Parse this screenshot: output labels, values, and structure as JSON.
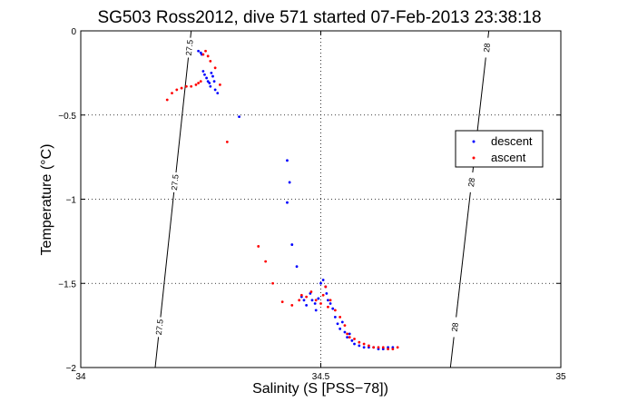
{
  "chart_data": {
    "type": "scatter",
    "title": "SG503 Ross2012, dive 571 started 07-Feb-2013 23:38:18",
    "xlabel": "Salinity (S [PSS−78])",
    "ylabel": "Temperature (°C)",
    "xlim": [
      34,
      35
    ],
    "ylim": [
      -2,
      0
    ],
    "x_ticks": [
      "34",
      "34.5",
      "35"
    ],
    "y_ticks": [
      "0",
      "−0.5",
      "−1",
      "−1.5",
      "−2"
    ],
    "grid": true,
    "legend_position": "right",
    "series": [
      {
        "name": "descent",
        "color": "#0000ff",
        "x": [
          34.245,
          34.25,
          34.252,
          34.255,
          34.258,
          34.262,
          34.265,
          34.268,
          34.27,
          34.272,
          34.275,
          34.278,
          34.28,
          34.285,
          34.33,
          34.43,
          34.435,
          34.43,
          34.44,
          34.45,
          34.46,
          34.465,
          34.47,
          34.478,
          34.482,
          34.488,
          34.49,
          34.495,
          34.5,
          34.505,
          34.51,
          34.512,
          34.515,
          34.52,
          34.525,
          34.53,
          34.535,
          34.54,
          34.545,
          34.55,
          34.555,
          34.56,
          34.565,
          34.57,
          34.58,
          34.59,
          34.6,
          34.61,
          34.62,
          34.63,
          34.64,
          34.65
        ],
        "y": [
          -0.12,
          -0.13,
          -0.14,
          -0.24,
          -0.26,
          -0.28,
          -0.3,
          -0.31,
          -0.33,
          -0.25,
          -0.27,
          -0.3,
          -0.35,
          -0.37,
          -0.51,
          -0.77,
          -0.9,
          -1.02,
          -1.27,
          -1.4,
          -1.58,
          -1.6,
          -1.63,
          -1.56,
          -1.6,
          -1.62,
          -1.66,
          -1.59,
          -1.5,
          -1.48,
          -1.52,
          -1.56,
          -1.6,
          -1.62,
          -1.65,
          -1.7,
          -1.74,
          -1.77,
          -1.73,
          -1.79,
          -1.82,
          -1.8,
          -1.84,
          -1.86,
          -1.87,
          -1.88,
          -1.88,
          -1.88,
          -1.89,
          -1.89,
          -1.88,
          -1.88
        ]
      },
      {
        "name": "ascent",
        "color": "#ff0000",
        "x": [
          34.18,
          34.19,
          34.2,
          34.21,
          34.22,
          34.23,
          34.24,
          34.245,
          34.25,
          34.255,
          34.26,
          34.265,
          34.27,
          34.28,
          34.29,
          34.305,
          34.37,
          34.385,
          34.4,
          34.42,
          34.44,
          34.455,
          34.46,
          34.47,
          34.48,
          34.49,
          34.5,
          34.505,
          34.51,
          34.515,
          34.52,
          34.53,
          34.54,
          34.55,
          34.555,
          34.56,
          34.57,
          34.58,
          34.59,
          34.6,
          34.61,
          34.62,
          34.63,
          34.64,
          34.65,
          34.66
        ],
        "y": [
          -0.41,
          -0.37,
          -0.35,
          -0.34,
          -0.33,
          -0.33,
          -0.32,
          -0.31,
          -0.3,
          -0.14,
          -0.12,
          -0.15,
          -0.18,
          -0.22,
          -0.32,
          -0.66,
          -1.28,
          -1.37,
          -1.5,
          -1.61,
          -1.63,
          -1.6,
          -1.57,
          -1.58,
          -1.55,
          -1.6,
          -1.62,
          -1.57,
          -1.52,
          -1.64,
          -1.6,
          -1.66,
          -1.7,
          -1.75,
          -1.8,
          -1.82,
          -1.83,
          -1.85,
          -1.86,
          -1.87,
          -1.88,
          -1.88,
          -1.88,
          -1.89,
          -1.89,
          -1.88
        ]
      }
    ],
    "contours": [
      {
        "label": "27.5",
        "x": [
          34.155,
          34.23
        ]
      },
      {
        "label": "28",
        "x": [
          34.77,
          34.85
        ]
      }
    ]
  }
}
